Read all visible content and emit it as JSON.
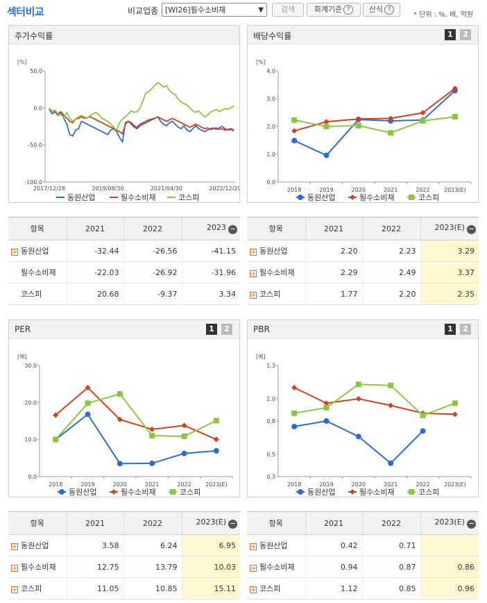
{
  "header": {
    "title": "섹터비교",
    "compare_label": "비교업종",
    "sector_select": "[WI26]필수소비재",
    "search_button": "검색",
    "accounting_button": "회계기준",
    "calc_button": "산식",
    "help_glyph": "?",
    "unit_note": "* 단위 : %, 배, 억원"
  },
  "series_names": [
    "동원산업",
    "필수소비재",
    "코스피"
  ],
  "colors": {
    "s1": "#2a6bd8",
    "s2": "#d2401c",
    "s3": "#8cc63f",
    "highlight": "#fdf8d0"
  },
  "panels": {
    "stock": {
      "title": "주가수익률",
      "unit": "[%]"
    },
    "dividend": {
      "title": "배당수익률",
      "unit": "[%]",
      "tabs": [
        "1",
        "2"
      ]
    },
    "per": {
      "title": "PER",
      "unit": "[배]",
      "tabs": [
        "1",
        "2"
      ]
    },
    "pbr": {
      "title": "PBR",
      "unit": "[배]",
      "tabs": [
        "1",
        "2"
      ]
    }
  },
  "chart_data": [
    {
      "id": "stock",
      "type": "line",
      "title": "주가수익률",
      "ylabel": "[%]",
      "ylim": [
        -100,
        50
      ],
      "yticks": [
        "50.0",
        "0.0",
        "-50.0",
        "-100.0"
      ],
      "xticks": [
        "2017/12/28",
        "2019/08/30",
        "2021/04/30",
        "2022/12/29"
      ],
      "x_months": [
        0,
        1,
        2,
        3,
        4,
        5,
        6,
        7,
        8,
        9,
        10,
        11,
        12,
        13,
        14,
        15,
        16,
        17,
        18,
        19,
        20,
        21,
        22,
        23,
        24,
        25,
        26,
        27,
        28,
        29,
        30,
        31,
        32,
        33,
        34,
        35,
        36,
        37,
        38,
        39,
        40,
        41,
        42,
        43,
        44,
        45,
        46,
        47,
        48,
        49,
        50,
        51,
        52,
        53,
        54,
        55,
        56,
        57,
        58,
        59,
        60,
        61,
        62,
        63
      ],
      "series": [
        {
          "name": "동원산업",
          "values": [
            -2,
            -8,
            -5,
            -10,
            -6,
            -14,
            -22,
            -36,
            -38,
            -30,
            -28,
            -18,
            -20,
            -22,
            -24,
            -26,
            -28,
            -30,
            -32,
            -34,
            -36,
            -30,
            -28,
            -32,
            -40,
            -46,
            -20,
            -18,
            -22,
            -26,
            -28,
            -24,
            -22,
            -20,
            -18,
            -16,
            -14,
            -12,
            -18,
            -22,
            -24,
            -20,
            -18,
            -22,
            -26,
            -28,
            -24,
            -30,
            -32,
            -28,
            -24,
            -28,
            -30,
            -32,
            -30,
            -28,
            -27,
            -29,
            -27,
            -25,
            -28,
            -30,
            -29,
            -31
          ]
        },
        {
          "name": "필수소비재",
          "values": [
            -2,
            -4,
            -6,
            -8,
            -5,
            -10,
            -14,
            -18,
            -20,
            -15,
            -14,
            -12,
            -14,
            -13,
            -12,
            -14,
            -16,
            -18,
            -20,
            -22,
            -24,
            -26,
            -28,
            -30,
            -32,
            -35,
            -22,
            -18,
            -20,
            -24,
            -26,
            -22,
            -20,
            -18,
            -16,
            -15,
            -14,
            -12,
            -14,
            -16,
            -18,
            -16,
            -14,
            -16,
            -18,
            -20,
            -22,
            -24,
            -26,
            -24,
            -22,
            -24,
            -26,
            -28,
            -27,
            -29,
            -28,
            -27,
            -29,
            -28,
            -30,
            -29,
            -28,
            -30
          ]
        },
        {
          "name": "코스피",
          "values": [
            0,
            -5,
            -3,
            -8,
            -10,
            -12,
            -6,
            -14,
            -18,
            -15,
            -12,
            -10,
            -12,
            -14,
            -10,
            -8,
            -6,
            -10,
            -14,
            -16,
            -18,
            -22,
            -26,
            -30,
            -20,
            -15,
            -12,
            -8,
            -4,
            -6,
            -5,
            0,
            10,
            20,
            22,
            26,
            30,
            34,
            32,
            28,
            30,
            24,
            20,
            18,
            12,
            8,
            6,
            4,
            0,
            -4,
            -6,
            -4,
            -8,
            -12,
            -10,
            -6,
            -4,
            -2,
            -5,
            -3,
            -1,
            -2,
            0,
            3
          ]
        }
      ]
    },
    {
      "id": "dividend",
      "type": "line",
      "title": "배당수익률",
      "ylabel": "[%]",
      "ylim": [
        0,
        4.0
      ],
      "yticks": [
        "4.0",
        "3.0",
        "2.0",
        "1.0",
        "0.0"
      ],
      "categories": [
        "2018",
        "2019",
        "2020",
        "2021",
        "2022",
        "2023(E)"
      ],
      "series": [
        {
          "name": "동원산업",
          "values": [
            1.49,
            0.96,
            2.25,
            2.2,
            2.23,
            3.29
          ]
        },
        {
          "name": "필수소비재",
          "values": [
            1.84,
            2.17,
            2.27,
            2.29,
            2.49,
            3.37
          ]
        },
        {
          "name": "코스피",
          "values": [
            2.23,
            2.0,
            2.03,
            1.77,
            2.2,
            2.35
          ]
        }
      ]
    },
    {
      "id": "per",
      "type": "line",
      "title": "PER",
      "ylabel": "[배]",
      "ylim": [
        0,
        30.0
      ],
      "yticks": [
        "30.0",
        "20.0",
        "10.0",
        "0.0"
      ],
      "categories": [
        "2018",
        "2019",
        "2020",
        "2021",
        "2022",
        "2023(E)"
      ],
      "series": [
        {
          "name": "동원산업",
          "values": [
            10.0,
            16.8,
            3.5,
            3.58,
            6.24,
            6.95
          ]
        },
        {
          "name": "필수소비재",
          "values": [
            16.6,
            24.0,
            15.4,
            12.75,
            13.79,
            10.03
          ]
        },
        {
          "name": "코스피",
          "values": [
            10.0,
            19.8,
            22.3,
            11.05,
            10.85,
            15.11
          ]
        }
      ]
    },
    {
      "id": "pbr",
      "type": "line",
      "title": "PBR",
      "ylabel": "[배]",
      "ylim": [
        0.3,
        1.3
      ],
      "yticks": [
        "1.3",
        "1.0",
        "0.8",
        "0.5",
        "0.3"
      ],
      "categories": [
        "2018",
        "2019",
        "2020",
        "2021",
        "2022",
        "2023(E)"
      ],
      "series": [
        {
          "name": "동원산업",
          "values": [
            0.75,
            0.8,
            0.66,
            0.42,
            0.71,
            null
          ]
        },
        {
          "name": "필수소비재",
          "values": [
            1.1,
            0.96,
            1.0,
            0.94,
            0.87,
            0.86
          ]
        },
        {
          "name": "코스피",
          "values": [
            0.87,
            0.92,
            1.13,
            1.12,
            0.85,
            0.96
          ]
        }
      ]
    }
  ],
  "tables": {
    "stock": {
      "headers": [
        "항목",
        "2021",
        "2022",
        "2023"
      ],
      "rows": [
        {
          "name": "동원산업",
          "expand": true,
          "values": [
            "-32.44",
            "-26.56",
            "-41.15"
          ]
        },
        {
          "name": "필수소비재",
          "expand": false,
          "values": [
            "-22.03",
            "-26.92",
            "-31.96"
          ]
        },
        {
          "name": "코스피",
          "expand": false,
          "values": [
            "20.68",
            "-9.37",
            "3.34"
          ]
        }
      ]
    },
    "dividend": {
      "headers": [
        "항목",
        "2021",
        "2022",
        "2023(E)"
      ],
      "rows": [
        {
          "name": "동원산업",
          "expand": true,
          "values": [
            "2.20",
            "2.23",
            "3.29"
          ]
        },
        {
          "name": "필수소비재",
          "expand": true,
          "values": [
            "2.29",
            "2.49",
            "3.37"
          ]
        },
        {
          "name": "코스피",
          "expand": true,
          "values": [
            "1.77",
            "2.20",
            "2.35"
          ]
        }
      ]
    },
    "per": {
      "headers": [
        "항목",
        "2021",
        "2022",
        "2023(E)"
      ],
      "rows": [
        {
          "name": "동원산업",
          "expand": true,
          "values": [
            "3.58",
            "6.24",
            "6.95"
          ]
        },
        {
          "name": "필수소비재",
          "expand": true,
          "values": [
            "12.75",
            "13.79",
            "10.03"
          ]
        },
        {
          "name": "코스피",
          "expand": true,
          "values": [
            "11.05",
            "10.85",
            "15.11"
          ]
        }
      ]
    },
    "pbr": {
      "headers": [
        "항목",
        "2021",
        "2022",
        "2023(E)"
      ],
      "rows": [
        {
          "name": "동원산업",
          "expand": true,
          "values": [
            "0.42",
            "0.71",
            ""
          ]
        },
        {
          "name": "필수소비재",
          "expand": true,
          "values": [
            "0.94",
            "0.87",
            "0.86"
          ]
        },
        {
          "name": "코스피",
          "expand": true,
          "values": [
            "1.12",
            "0.85",
            "0.96"
          ]
        }
      ]
    }
  }
}
